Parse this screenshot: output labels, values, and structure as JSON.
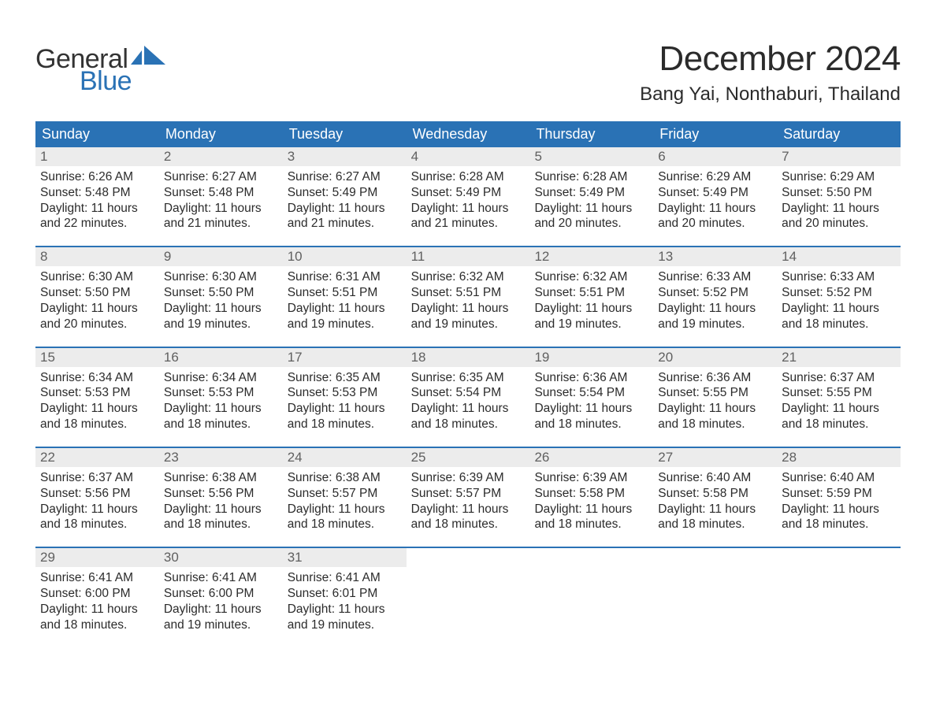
{
  "brand": {
    "word1": "General",
    "word2": "Blue",
    "text_color1": "#333333",
    "text_color2": "#2a72b5",
    "sail_color": "#2a72b5"
  },
  "title": "December 2024",
  "location": "Bang Yai, Nonthaburi, Thailand",
  "colors": {
    "header_bg": "#2a72b5",
    "header_text": "#ffffff",
    "daynum_bg": "#ececec",
    "daynum_text": "#606060",
    "body_text": "#2b2b2b",
    "week_sep": "#2a72b5",
    "page_bg": "#ffffff"
  },
  "day_names": [
    "Sunday",
    "Monday",
    "Tuesday",
    "Wednesday",
    "Thursday",
    "Friday",
    "Saturday"
  ],
  "weeks": [
    [
      {
        "n": "1",
        "sr": "Sunrise: 6:26 AM",
        "ss": "Sunset: 5:48 PM",
        "d1": "Daylight: 11 hours",
        "d2": "and 22 minutes."
      },
      {
        "n": "2",
        "sr": "Sunrise: 6:27 AM",
        "ss": "Sunset: 5:48 PM",
        "d1": "Daylight: 11 hours",
        "d2": "and 21 minutes."
      },
      {
        "n": "3",
        "sr": "Sunrise: 6:27 AM",
        "ss": "Sunset: 5:49 PM",
        "d1": "Daylight: 11 hours",
        "d2": "and 21 minutes."
      },
      {
        "n": "4",
        "sr": "Sunrise: 6:28 AM",
        "ss": "Sunset: 5:49 PM",
        "d1": "Daylight: 11 hours",
        "d2": "and 21 minutes."
      },
      {
        "n": "5",
        "sr": "Sunrise: 6:28 AM",
        "ss": "Sunset: 5:49 PM",
        "d1": "Daylight: 11 hours",
        "d2": "and 20 minutes."
      },
      {
        "n": "6",
        "sr": "Sunrise: 6:29 AM",
        "ss": "Sunset: 5:49 PM",
        "d1": "Daylight: 11 hours",
        "d2": "and 20 minutes."
      },
      {
        "n": "7",
        "sr": "Sunrise: 6:29 AM",
        "ss": "Sunset: 5:50 PM",
        "d1": "Daylight: 11 hours",
        "d2": "and 20 minutes."
      }
    ],
    [
      {
        "n": "8",
        "sr": "Sunrise: 6:30 AM",
        "ss": "Sunset: 5:50 PM",
        "d1": "Daylight: 11 hours",
        "d2": "and 20 minutes."
      },
      {
        "n": "9",
        "sr": "Sunrise: 6:30 AM",
        "ss": "Sunset: 5:50 PM",
        "d1": "Daylight: 11 hours",
        "d2": "and 19 minutes."
      },
      {
        "n": "10",
        "sr": "Sunrise: 6:31 AM",
        "ss": "Sunset: 5:51 PM",
        "d1": "Daylight: 11 hours",
        "d2": "and 19 minutes."
      },
      {
        "n": "11",
        "sr": "Sunrise: 6:32 AM",
        "ss": "Sunset: 5:51 PM",
        "d1": "Daylight: 11 hours",
        "d2": "and 19 minutes."
      },
      {
        "n": "12",
        "sr": "Sunrise: 6:32 AM",
        "ss": "Sunset: 5:51 PM",
        "d1": "Daylight: 11 hours",
        "d2": "and 19 minutes."
      },
      {
        "n": "13",
        "sr": "Sunrise: 6:33 AM",
        "ss": "Sunset: 5:52 PM",
        "d1": "Daylight: 11 hours",
        "d2": "and 19 minutes."
      },
      {
        "n": "14",
        "sr": "Sunrise: 6:33 AM",
        "ss": "Sunset: 5:52 PM",
        "d1": "Daylight: 11 hours",
        "d2": "and 18 minutes."
      }
    ],
    [
      {
        "n": "15",
        "sr": "Sunrise: 6:34 AM",
        "ss": "Sunset: 5:53 PM",
        "d1": "Daylight: 11 hours",
        "d2": "and 18 minutes."
      },
      {
        "n": "16",
        "sr": "Sunrise: 6:34 AM",
        "ss": "Sunset: 5:53 PM",
        "d1": "Daylight: 11 hours",
        "d2": "and 18 minutes."
      },
      {
        "n": "17",
        "sr": "Sunrise: 6:35 AM",
        "ss": "Sunset: 5:53 PM",
        "d1": "Daylight: 11 hours",
        "d2": "and 18 minutes."
      },
      {
        "n": "18",
        "sr": "Sunrise: 6:35 AM",
        "ss": "Sunset: 5:54 PM",
        "d1": "Daylight: 11 hours",
        "d2": "and 18 minutes."
      },
      {
        "n": "19",
        "sr": "Sunrise: 6:36 AM",
        "ss": "Sunset: 5:54 PM",
        "d1": "Daylight: 11 hours",
        "d2": "and 18 minutes."
      },
      {
        "n": "20",
        "sr": "Sunrise: 6:36 AM",
        "ss": "Sunset: 5:55 PM",
        "d1": "Daylight: 11 hours",
        "d2": "and 18 minutes."
      },
      {
        "n": "21",
        "sr": "Sunrise: 6:37 AM",
        "ss": "Sunset: 5:55 PM",
        "d1": "Daylight: 11 hours",
        "d2": "and 18 minutes."
      }
    ],
    [
      {
        "n": "22",
        "sr": "Sunrise: 6:37 AM",
        "ss": "Sunset: 5:56 PM",
        "d1": "Daylight: 11 hours",
        "d2": "and 18 minutes."
      },
      {
        "n": "23",
        "sr": "Sunrise: 6:38 AM",
        "ss": "Sunset: 5:56 PM",
        "d1": "Daylight: 11 hours",
        "d2": "and 18 minutes."
      },
      {
        "n": "24",
        "sr": "Sunrise: 6:38 AM",
        "ss": "Sunset: 5:57 PM",
        "d1": "Daylight: 11 hours",
        "d2": "and 18 minutes."
      },
      {
        "n": "25",
        "sr": "Sunrise: 6:39 AM",
        "ss": "Sunset: 5:57 PM",
        "d1": "Daylight: 11 hours",
        "d2": "and 18 minutes."
      },
      {
        "n": "26",
        "sr": "Sunrise: 6:39 AM",
        "ss": "Sunset: 5:58 PM",
        "d1": "Daylight: 11 hours",
        "d2": "and 18 minutes."
      },
      {
        "n": "27",
        "sr": "Sunrise: 6:40 AM",
        "ss": "Sunset: 5:58 PM",
        "d1": "Daylight: 11 hours",
        "d2": "and 18 minutes."
      },
      {
        "n": "28",
        "sr": "Sunrise: 6:40 AM",
        "ss": "Sunset: 5:59 PM",
        "d1": "Daylight: 11 hours",
        "d2": "and 18 minutes."
      }
    ],
    [
      {
        "n": "29",
        "sr": "Sunrise: 6:41 AM",
        "ss": "Sunset: 6:00 PM",
        "d1": "Daylight: 11 hours",
        "d2": "and 18 minutes."
      },
      {
        "n": "30",
        "sr": "Sunrise: 6:41 AM",
        "ss": "Sunset: 6:00 PM",
        "d1": "Daylight: 11 hours",
        "d2": "and 19 minutes."
      },
      {
        "n": "31",
        "sr": "Sunrise: 6:41 AM",
        "ss": "Sunset: 6:01 PM",
        "d1": "Daylight: 11 hours",
        "d2": "and 19 minutes."
      },
      {
        "empty": true
      },
      {
        "empty": true
      },
      {
        "empty": true
      },
      {
        "empty": true
      }
    ]
  ]
}
